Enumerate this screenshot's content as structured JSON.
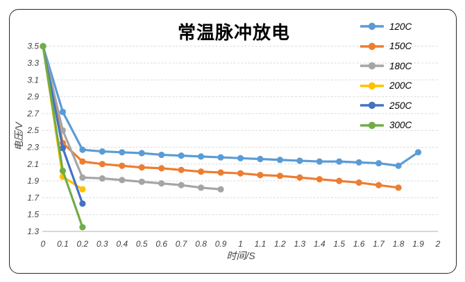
{
  "window": {
    "background": "#ffffff",
    "border_color": "#262626"
  },
  "chart_data": {
    "type": "line",
    "title": "常温脉冲放电",
    "xlabel": "时间/S",
    "ylabel": "电压/V",
    "xlim": [
      0,
      2
    ],
    "ylim": [
      1.3,
      3.5
    ],
    "grid": "horizontal-dashed",
    "gridline_color": "#d9d9d9",
    "axis_line_color": "#bfbfbf",
    "tick_text_color": "#404040",
    "legend_position": "right",
    "x_tick_labels": [
      "0",
      "0.1",
      "0.2",
      "0.3",
      "0.4",
      "0.5",
      "0.6",
      "0.7",
      "0.8",
      "0.9",
      "1",
      "1.1",
      "1.2",
      "1.3",
      "1.4",
      "1.5",
      "1.6",
      "1.7",
      "1.8",
      "1.9",
      "2"
    ],
    "y_tick_labels": [
      "3.5",
      "3.3",
      "3.1",
      "2.9",
      "2.7",
      "2.5",
      "2.3",
      "2.1",
      "1.9",
      "1.7",
      "1.5",
      "1.3"
    ],
    "series": [
      {
        "name": "120C",
        "color": "#5B9BD5",
        "x": [
          0,
          0.1,
          0.2,
          0.3,
          0.4,
          0.5,
          0.6,
          0.7,
          0.8,
          0.9,
          1.0,
          1.1,
          1.2,
          1.3,
          1.4,
          1.5,
          1.6,
          1.7,
          1.8,
          1.9
        ],
        "values": [
          3.5,
          2.72,
          2.27,
          2.25,
          2.24,
          2.23,
          2.21,
          2.2,
          2.19,
          2.18,
          2.17,
          2.16,
          2.15,
          2.14,
          2.13,
          2.13,
          2.12,
          2.11,
          2.08,
          2.24
        ]
      },
      {
        "name": "150C",
        "color": "#ED7D31",
        "x": [
          0,
          0.1,
          0.2,
          0.3,
          0.4,
          0.5,
          0.6,
          0.7,
          0.8,
          0.9,
          1.0,
          1.1,
          1.2,
          1.3,
          1.4,
          1.5,
          1.6,
          1.7,
          1.8
        ],
        "values": [
          3.5,
          2.35,
          2.13,
          2.1,
          2.08,
          2.06,
          2.05,
          2.03,
          2.01,
          2.0,
          1.99,
          1.97,
          1.96,
          1.94,
          1.92,
          1.9,
          1.88,
          1.85,
          1.82
        ]
      },
      {
        "name": "180C",
        "color": "#A5A5A5",
        "x": [
          0,
          0.1,
          0.2,
          0.3,
          0.4,
          0.5,
          0.6,
          0.7,
          0.8,
          0.9
        ],
        "values": [
          3.5,
          2.5,
          1.94,
          1.93,
          1.91,
          1.89,
          1.87,
          1.85,
          1.82,
          1.8
        ]
      },
      {
        "name": "200C",
        "color": "#FFC000",
        "x": [
          0,
          0.1,
          0.2
        ],
        "values": [
          3.5,
          1.95,
          1.8
        ]
      },
      {
        "name": "250C",
        "color": "#4472C4",
        "x": [
          0,
          0.1,
          0.2
        ],
        "values": [
          3.5,
          2.29,
          1.63
        ]
      },
      {
        "name": "300C",
        "color": "#70AD47",
        "x": [
          0,
          0.1,
          0.2
        ],
        "values": [
          3.5,
          2.02,
          1.35
        ]
      }
    ]
  }
}
